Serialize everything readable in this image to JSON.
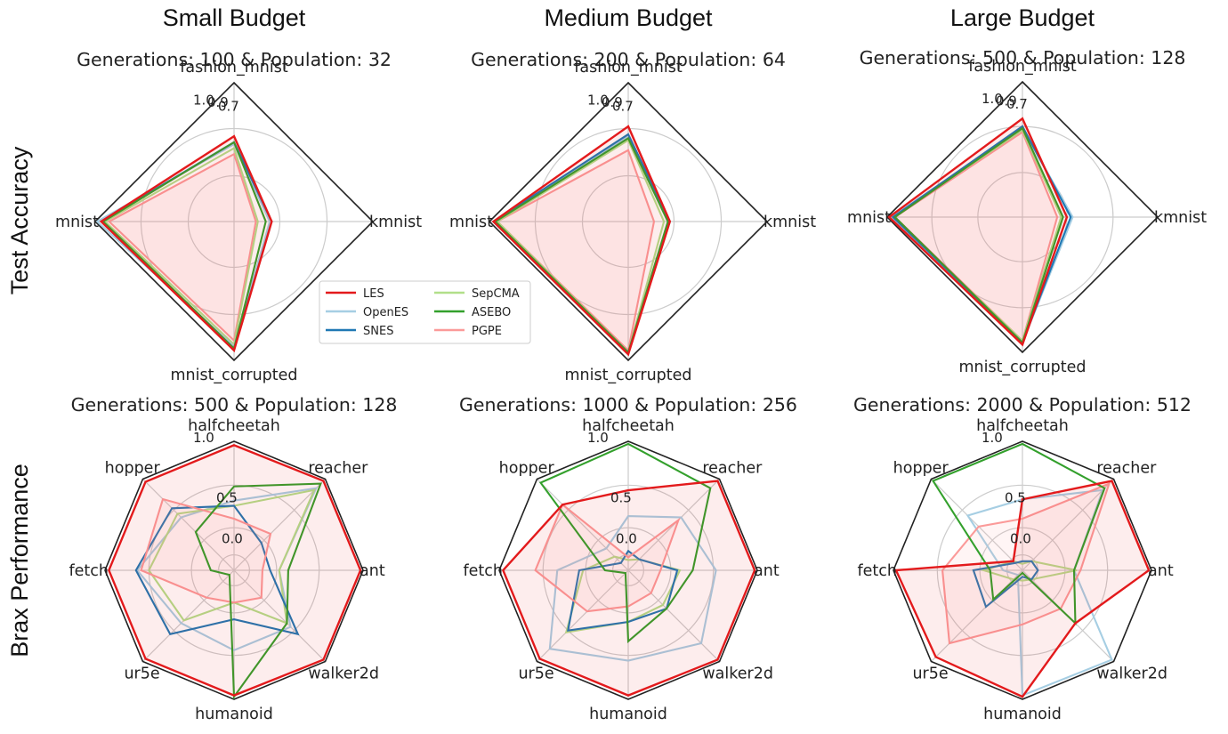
{
  "figure": {
    "column_titles": [
      "Small Budget",
      "Medium Budget",
      "Large Budget"
    ],
    "row_titles": [
      "Test Accuracy",
      "Brax Performance"
    ]
  },
  "legend": [
    {
      "name": "LES",
      "color": "#e31a1c"
    },
    {
      "name": "OpenES",
      "color": "#a6cee3"
    },
    {
      "name": "SNES",
      "color": "#1f78b4"
    },
    {
      "name": "SepCMA",
      "color": "#b2df8a"
    },
    {
      "name": "ASEBO",
      "color": "#33a02c"
    },
    {
      "name": "PGPE",
      "color": "#fb9a99"
    }
  ],
  "chart_data": [
    {
      "type": "radar",
      "panel": "row1-col1",
      "title": "Generations: 100  & Population: 32",
      "axes": [
        "fashion_mnist",
        "kmnist",
        "mnist_corrupted",
        "mnist"
      ],
      "rlim": [
        0.3,
        1.0
      ],
      "ring_labels": [
        "0.7",
        "0.9",
        "1.0"
      ],
      "series": [
        {
          "name": "PGPE",
          "values": [
            0.64,
            0.41,
            0.9,
            0.93
          ]
        },
        {
          "name": "SepCMA",
          "values": [
            0.67,
            0.42,
            0.92,
            0.95
          ]
        },
        {
          "name": "OpenES",
          "values": [
            0.69,
            0.48,
            0.93,
            0.99
          ]
        },
        {
          "name": "SNES",
          "values": [
            0.7,
            0.49,
            0.94,
            0.97
          ]
        },
        {
          "name": "ASEBO",
          "values": [
            0.7,
            0.46,
            0.94,
            0.96
          ]
        },
        {
          "name": "LES",
          "values": [
            0.73,
            0.49,
            0.95,
            0.97
          ]
        }
      ]
    },
    {
      "type": "radar",
      "panel": "row1-col2",
      "title": "Generations: 200  & Population: 64",
      "axes": [
        "fashion_mnist",
        "kmnist",
        "mnist_corrupted",
        "mnist"
      ],
      "rlim": [
        0.3,
        1.0
      ],
      "ring_labels": [
        "0.7",
        "0.9",
        "1.0"
      ],
      "series": [
        {
          "name": "PGPE",
          "values": [
            0.66,
            0.43,
            0.95,
            0.96
          ]
        },
        {
          "name": "SepCMA",
          "values": [
            0.71,
            0.48,
            0.96,
            0.96
          ]
        },
        {
          "name": "OpenES",
          "values": [
            0.73,
            0.5,
            0.96,
            0.98
          ]
        },
        {
          "name": "SNES",
          "values": [
            0.74,
            0.51,
            0.96,
            0.98
          ]
        },
        {
          "name": "ASEBO",
          "values": [
            0.72,
            0.5,
            0.96,
            0.97
          ]
        },
        {
          "name": "LES",
          "values": [
            0.78,
            0.51,
            0.97,
            0.98
          ]
        }
      ]
    },
    {
      "type": "radar",
      "panel": "row1-col3",
      "title": "Generations: 500  & Population: 128",
      "axes": [
        "fashion_mnist",
        "kmnist",
        "mnist_corrupted",
        "mnist"
      ],
      "rlim": [
        0.3,
        1.0
      ],
      "ring_labels": [
        "0.7",
        "0.9",
        "1.0"
      ],
      "series": [
        {
          "name": "PGPE",
          "values": [
            0.74,
            0.48,
            0.94,
            0.96
          ]
        },
        {
          "name": "SepCMA",
          "values": [
            0.75,
            0.5,
            0.94,
            0.97
          ]
        },
        {
          "name": "OpenES",
          "values": [
            0.76,
            0.56,
            0.95,
            0.98
          ]
        },
        {
          "name": "SNES",
          "values": [
            0.77,
            0.55,
            0.95,
            0.97
          ]
        },
        {
          "name": "ASEBO",
          "values": [
            0.76,
            0.51,
            0.95,
            0.96
          ]
        },
        {
          "name": "LES",
          "values": [
            0.81,
            0.53,
            0.96,
            0.99
          ]
        }
      ]
    },
    {
      "type": "radar",
      "panel": "row2-col1",
      "title": "Generations: 500  & Population: 128",
      "axes": [
        "halfcheetah",
        "reacher",
        "ant",
        "walker2d",
        "humanoid",
        "ur5e",
        "fetch",
        "hopper"
      ],
      "rlim": [
        0.0,
        1.0
      ],
      "ring_labels": [
        "0.0",
        "0.5",
        "1.0"
      ],
      "series": [
        {
          "name": "OpenES",
          "values": [
            0.54,
            0.9,
            0.35,
            0.62,
            0.62,
            0.58,
            0.75,
            0.58
          ]
        },
        {
          "name": "SepCMA",
          "values": [
            0.5,
            0.88,
            0.35,
            0.58,
            0.25,
            0.55,
            0.66,
            0.62
          ]
        },
        {
          "name": "SNES",
          "values": [
            0.5,
            0.3,
            0.28,
            0.7,
            0.38,
            0.7,
            0.76,
            0.68
          ]
        },
        {
          "name": "PGPE",
          "values": [
            0.4,
            0.4,
            0.22,
            0.3,
            0.25,
            0.3,
            0.72,
            0.78
          ]
        },
        {
          "name": "ASEBO",
          "values": [
            0.65,
            0.95,
            0.42,
            0.58,
            0.98,
            0.05,
            0.18,
            0.42
          ]
        },
        {
          "name": "LES",
          "values": [
            0.97,
            0.98,
            0.98,
            0.98,
            0.97,
            0.97,
            0.97,
            0.97
          ]
        }
      ]
    },
    {
      "type": "radar",
      "panel": "row2-col2",
      "title": "Generations: 1000  & Population: 256",
      "axes": [
        "halfcheetah",
        "reacher",
        "ant",
        "walker2d",
        "humanoid",
        "ur5e",
        "fetch",
        "hopper"
      ],
      "rlim": [
        0.0,
        1.0
      ],
      "ring_labels": [
        "0.0",
        "0.5",
        "1.0"
      ],
      "series": [
        {
          "name": "OpenES",
          "values": [
            0.42,
            0.58,
            0.68,
            0.8,
            0.7,
            0.86,
            0.55,
            0.24
          ]
        },
        {
          "name": "SepCMA",
          "values": [
            0.08,
            0.12,
            0.4,
            0.38,
            0.4,
            0.68,
            0.35,
            0.15
          ]
        },
        {
          "name": "SNES",
          "values": [
            0.15,
            0.12,
            0.38,
            0.42,
            0.4,
            0.66,
            0.38,
            0.08
          ]
        },
        {
          "name": "PGPE",
          "values": [
            0.1,
            0.55,
            0.25,
            0.25,
            0.28,
            0.45,
            0.72,
            0.72
          ]
        },
        {
          "name": "ASEBO",
          "values": [
            0.98,
            0.9,
            0.5,
            0.42,
            0.55,
            0.03,
            0.18,
            0.96
          ]
        },
        {
          "name": "LES",
          "values": [
            0.62,
            0.98,
            0.98,
            0.98,
            0.97,
            0.97,
            0.97,
            0.72
          ]
        }
      ]
    },
    {
      "type": "radar",
      "panel": "row2-col3",
      "title": "Generations: 2000  & Population: 512",
      "axes": [
        "halfcheetah",
        "reacher",
        "ant",
        "walker2d",
        "humanoid",
        "ur5e",
        "fetch",
        "hopper"
      ],
      "rlim": [
        0.0,
        1.0
      ],
      "ring_labels": [
        "0.0",
        "0.5",
        "1.0"
      ],
      "series": [
        {
          "name": "OpenES",
          "values": [
            0.55,
            0.88,
            0.4,
            0.98,
            0.97,
            0.05,
            0.15,
            0.6
          ]
        },
        {
          "name": "SepCMA",
          "values": [
            0.05,
            0.1,
            0.42,
            0.1,
            0.08,
            0.1,
            0.3,
            0.1
          ]
        },
        {
          "name": "SNES",
          "values": [
            0.07,
            0.1,
            0.12,
            0.1,
            0.05,
            0.4,
            0.38,
            0.08
          ]
        },
        {
          "name": "PGPE",
          "values": [
            0.4,
            0.95,
            0.45,
            0.42,
            0.42,
            0.8,
            0.62,
            0.48
          ]
        },
        {
          "name": "ASEBO",
          "values": [
            0.98,
            0.9,
            0.4,
            0.58,
            0.02,
            0.32,
            0.25,
            0.98
          ]
        },
        {
          "name": "LES",
          "values": [
            0.55,
            0.98,
            0.98,
            0.58,
            0.98,
            0.95,
            0.98,
            0.1
          ]
        }
      ]
    }
  ]
}
